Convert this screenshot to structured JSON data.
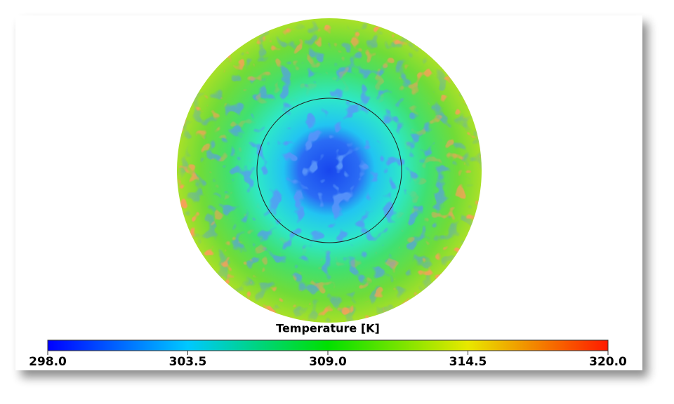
{
  "colorbar": {
    "label": "Temperature [K]",
    "ticks": [
      "298.0",
      "303.5",
      "309.0",
      "314.5",
      "320.0"
    ]
  }
}
